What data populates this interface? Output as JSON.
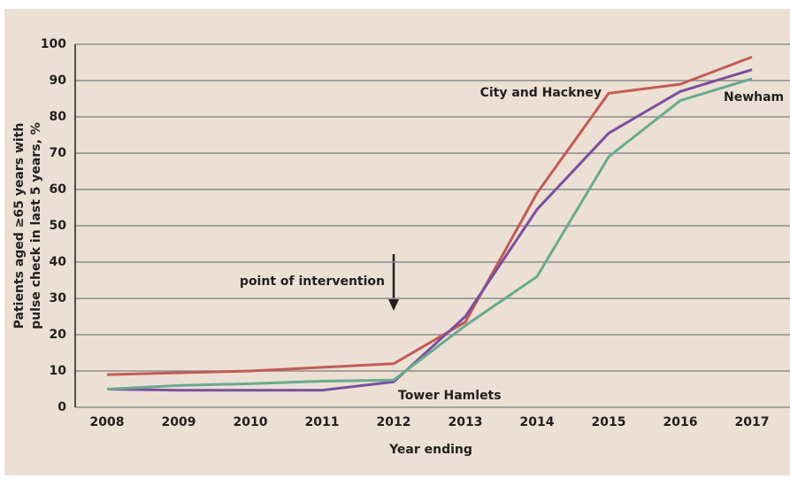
{
  "chart_data": {
    "type": "line",
    "y_label": [
      "Patients aged ≥65 years with",
      "pulse check in last 5 years, %"
    ],
    "x_label": "Year ending",
    "categories": [
      "2008",
      "2009",
      "2010",
      "2011",
      "2012",
      "2013",
      "2014",
      "2015",
      "2016",
      "2017"
    ],
    "series": [
      {
        "name": "City and Hackney",
        "color": "#c25b56",
        "values": [
          9,
          9.5,
          10,
          11,
          12,
          23.5,
          59,
          86.5,
          89,
          96.5
        ]
      },
      {
        "name": "Tower Hamlets",
        "color": "#7b4fa0",
        "values": [
          5,
          4.7,
          4.7,
          4.7,
          7,
          25,
          54.5,
          75.5,
          87,
          93
        ]
      },
      {
        "name": "Newham",
        "color": "#6aaa8e",
        "values": [
          5,
          6,
          6.5,
          7.2,
          7.5,
          22.5,
          36,
          69,
          84.5,
          90.5
        ]
      }
    ],
    "annotation": "point of intervention",
    "ylim": [
      0,
      100
    ],
    "yticks": [
      0,
      10,
      20,
      30,
      40,
      50,
      60,
      70,
      80,
      90,
      100
    ],
    "grid": true
  }
}
